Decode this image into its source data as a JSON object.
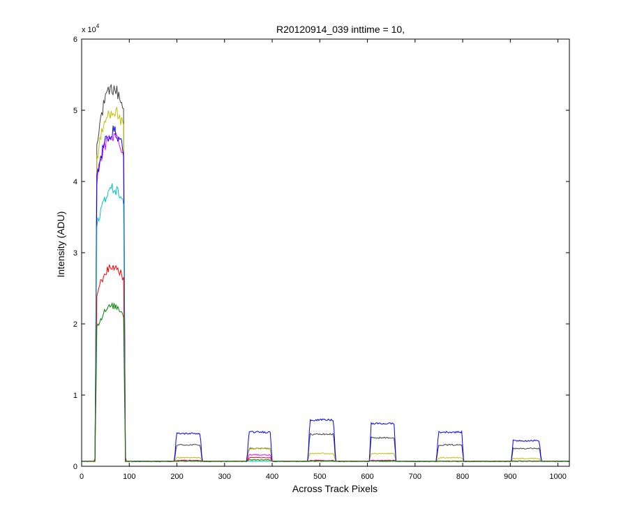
{
  "chart_data": {
    "type": "line",
    "title": "R20120914_039 inttime = 10,",
    "xlabel": "Across Track Pixels",
    "ylabel": "Intensity (ADU)",
    "xlim": [
      0,
      1024
    ],
    "ylim": [
      0,
      60000
    ],
    "x_ticks": [
      0,
      100,
      200,
      300,
      400,
      500,
      600,
      700,
      800,
      900,
      1000
    ],
    "y_ticks": [
      0,
      10000,
      20000,
      30000,
      40000,
      50000,
      60000
    ],
    "x_tick_labels": [
      "0",
      "100",
      "200",
      "300",
      "400",
      "500",
      "600",
      "700",
      "800",
      "900",
      "1000"
    ],
    "y_tick_labels": [
      "0",
      "1",
      "2",
      "3",
      "4",
      "5",
      "6"
    ],
    "y_exponent_base": "x 10",
    "y_exponent_power": "4",
    "grid": false,
    "legend": "none",
    "baseline": 700,
    "plateaus": [
      {
        "start": 28,
        "end": 92
      },
      {
        "start": 195,
        "end": 253
      },
      {
        "start": 347,
        "end": 400
      },
      {
        "start": 475,
        "end": 533
      },
      {
        "start": 604,
        "end": 660
      },
      {
        "start": 745,
        "end": 802
      },
      {
        "start": 902,
        "end": 965
      }
    ],
    "series": [
      {
        "color": "#404040",
        "levels": [
          53000,
          3000,
          2500,
          4500,
          4000,
          3000,
          2500
        ]
      },
      {
        "color": "#bfbf00",
        "levels": [
          50000,
          1200,
          2500,
          1800,
          1800,
          1200,
          1100
        ]
      },
      {
        "color": "#ff00ff",
        "levels": [
          46500,
          800,
          1600,
          800,
          800,
          700,
          700
        ]
      },
      {
        "color": "#0000ff",
        "levels": [
          47000,
          4600,
          4800,
          6500,
          6000,
          4800,
          3600
        ]
      },
      {
        "color": "#00bfbf",
        "levels": [
          39000,
          700,
          700,
          700,
          700,
          700,
          700
        ]
      },
      {
        "color": "#ff0000",
        "levels": [
          28000,
          800,
          1200,
          800,
          800,
          700,
          700
        ]
      },
      {
        "color": "#008000",
        "levels": [
          22500,
          700,
          900,
          700,
          700,
          700,
          700
        ]
      }
    ]
  }
}
